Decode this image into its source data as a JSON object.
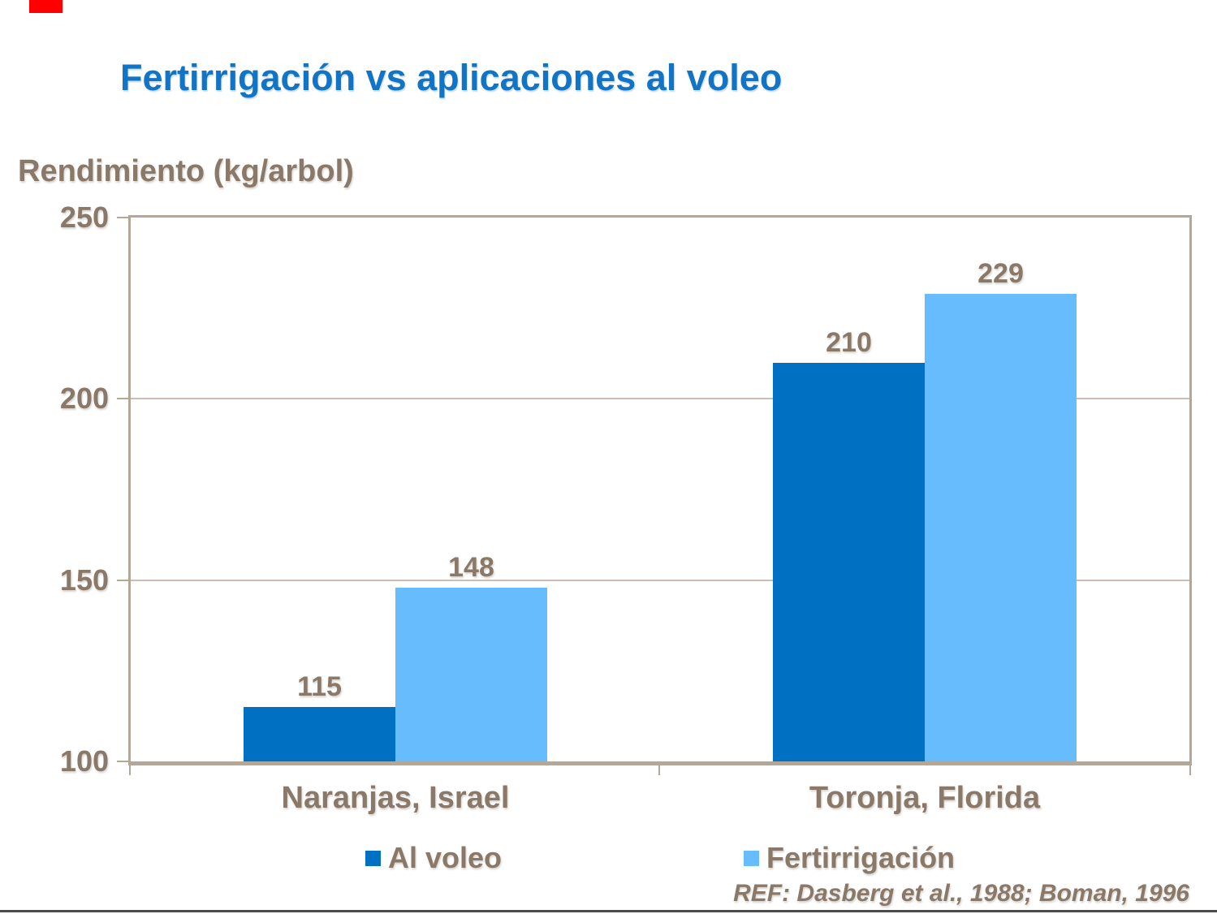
{
  "title": "Fertirrigación vs aplicaciones al voleo",
  "y_axis_label": "Rendimiento (kg/arbol)",
  "reference": "REF: Dasberg et al., 1988; Boman, 1996",
  "colors": {
    "title": "#1174C5",
    "text_brown": "#8A7968",
    "axis_frame": "#B3A79A",
    "gridline": "#C9BFB4",
    "al_voleo": "#0070C2",
    "fertirrigacion": "#66BCFC",
    "marker_red": "#FF0000",
    "bottom_rule": "#4A4A4A"
  },
  "chart_data": {
    "type": "bar",
    "title": "Fertirrigación vs aplicaciones al voleo",
    "ylabel": "Rendimiento (kg/arbol)",
    "xlabel": "",
    "categories": [
      "Naranjas, Israel",
      "Toronja, Florida"
    ],
    "series": [
      {
        "name": "Al voleo",
        "color": "#0070C2",
        "values": [
          115,
          210
        ]
      },
      {
        "name": "Fertirrigación",
        "color": "#66BCFC",
        "values": [
          148,
          229
        ]
      }
    ],
    "ylim": [
      100,
      250
    ],
    "yticks": [
      100,
      150,
      200,
      250
    ],
    "grid": true,
    "data_labels": true,
    "legend_position": "bottom"
  },
  "legend": [
    {
      "label": "Al voleo",
      "color": "#0070C2"
    },
    {
      "label": "Fertirrigación",
      "color": "#66BCFC"
    }
  ]
}
